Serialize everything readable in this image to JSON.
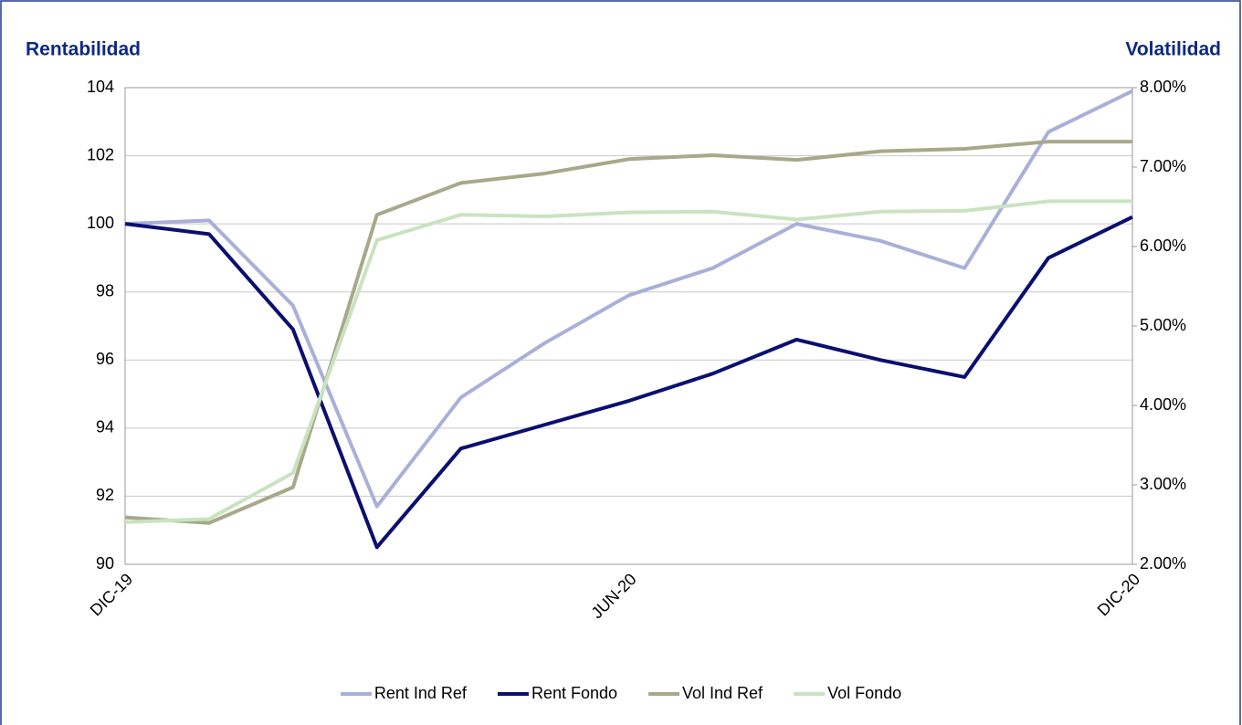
{
  "chart_data": {
    "type": "line",
    "y_title": "Rentabilidad",
    "y2_title": "Volatilidad",
    "categories": [
      "DIC-19",
      null,
      null,
      null,
      null,
      null,
      "JUN-20",
      null,
      null,
      null,
      null,
      null,
      "DIC-20"
    ],
    "ylim": [
      90,
      104
    ],
    "yticks": [
      90,
      92,
      94,
      96,
      98,
      100,
      102,
      104
    ],
    "y2lim": [
      2,
      8
    ],
    "y2ticks": [
      {
        "value": 2,
        "label": "2.00%"
      },
      {
        "value": 3,
        "label": "3.00%"
      },
      {
        "value": 4,
        "label": "4.00%"
      },
      {
        "value": 5,
        "label": "5.00%"
      },
      {
        "value": 6,
        "label": "6.00%"
      },
      {
        "value": 7,
        "label": "7.00%"
      },
      {
        "value": 8,
        "label": "8.00%"
      }
    ],
    "grid": true,
    "legend": "bottom",
    "series": [
      {
        "name": "Rent Ind Ref",
        "color": "#a9b0d8",
        "values": [
          100.0,
          100.1,
          97.6,
          91.7,
          94.9,
          96.5,
          97.9,
          98.7,
          100.0,
          99.5,
          98.7,
          102.7,
          103.9
        ]
      },
      {
        "name": "Rent Fondo",
        "color": "#0a0f70",
        "values": [
          100.0,
          99.7,
          96.9,
          90.5,
          93.4,
          94.1,
          94.8,
          95.6,
          96.6,
          96.0,
          95.5,
          99.0,
          100.2
        ]
      },
      {
        "name": "Vol Ind Ref",
        "color": "#a8a88a",
        "axis": "y2",
        "values": [
          2.59,
          2.52,
          2.97,
          6.4,
          6.8,
          6.92,
          7.1,
          7.15,
          7.09,
          7.2,
          7.23,
          7.32,
          7.32
        ]
      },
      {
        "name": "Vol Fondo",
        "color": "#c9e3c1",
        "axis": "y2",
        "values": [
          2.53,
          2.57,
          3.15,
          6.08,
          6.4,
          6.38,
          6.43,
          6.44,
          6.34,
          6.44,
          6.45,
          6.57,
          6.57
        ]
      }
    ]
  }
}
